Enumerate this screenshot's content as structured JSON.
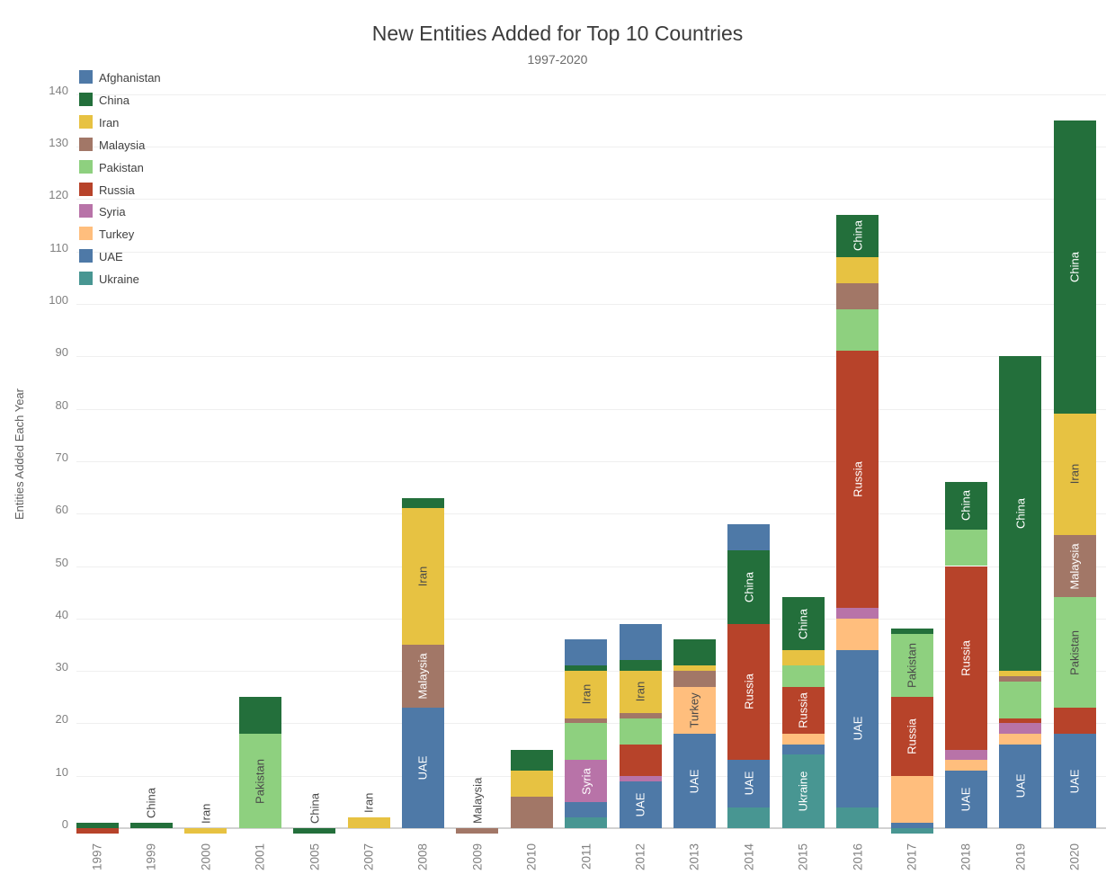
{
  "title": "New Entities Added for Top 10 Countries",
  "subtitle": "1997-2020",
  "y_axis_title": "Entities Added Each Year",
  "chart_data": {
    "type": "bar",
    "stacked": true,
    "grid": "horizontal",
    "legend_position": "upper-left",
    "categories": [
      "1997",
      "1999",
      "2000",
      "2001",
      "2005",
      "2007",
      "2008",
      "2009",
      "2010",
      "2011",
      "2012",
      "2013",
      "2014",
      "2015",
      "2016",
      "2017",
      "2018",
      "2019",
      "2020"
    ],
    "ylim": [
      -3,
      141
    ],
    "yticks": [
      0,
      10,
      20,
      30,
      40,
      50,
      60,
      70,
      80,
      90,
      100,
      110,
      120,
      130,
      140
    ],
    "stack_order_bottom_to_top": [
      "Ukraine",
      "UAE",
      "Turkey",
      "Syria",
      "Russia",
      "Pakistan",
      "Malaysia",
      "Iran",
      "China",
      "Afghanistan"
    ],
    "series": [
      {
        "name": "Afghanistan",
        "color": "#4e79a7",
        "values": [
          0,
          0,
          0,
          0,
          0,
          0,
          0,
          0,
          0,
          5,
          7,
          0,
          5,
          0,
          0,
          0,
          0,
          0,
          0
        ]
      },
      {
        "name": "China",
        "color": "#236f3b",
        "values": [
          1,
          1,
          0,
          7,
          -1,
          0,
          2,
          0,
          4,
          1,
          2,
          5,
          14,
          10,
          8,
          1,
          9,
          60,
          56
        ]
      },
      {
        "name": "Iran",
        "color": "#e7c242",
        "values": [
          0,
          0,
          -1,
          0,
          0,
          2,
          26,
          0,
          5,
          9,
          8,
          1,
          0,
          3,
          5,
          0,
          0,
          1,
          23
        ]
      },
      {
        "name": "Malaysia",
        "color": "#a27767",
        "values": [
          0,
          0,
          0,
          0,
          0,
          0,
          12,
          -1,
          6,
          1,
          1,
          3,
          0,
          0,
          5,
          0,
          0,
          1,
          12
        ]
      },
      {
        "name": "Pakistan",
        "color": "#8ed07f",
        "values": [
          0,
          0,
          0,
          18,
          0,
          0,
          0,
          0,
          0,
          7,
          5,
          0,
          0,
          4,
          8,
          12,
          7,
          7,
          21
        ]
      },
      {
        "name": "Russia",
        "color": "#b7432a",
        "values": [
          -1,
          0,
          0,
          0,
          0,
          0,
          0,
          0,
          0,
          0,
          6,
          0,
          26,
          9,
          49,
          15,
          35,
          1,
          5
        ]
      },
      {
        "name": "Syria",
        "color": "#b873a8",
        "values": [
          0,
          0,
          0,
          0,
          0,
          0,
          0,
          0,
          0,
          8,
          1,
          0,
          0,
          0,
          2,
          0,
          2,
          2,
          0
        ]
      },
      {
        "name": "Turkey",
        "color": "#ffbe7d",
        "values": [
          0,
          0,
          0,
          0,
          0,
          0,
          0,
          0,
          0,
          0,
          0,
          9,
          0,
          2,
          6,
          9,
          2,
          2,
          0
        ]
      },
      {
        "name": "UAE",
        "color": "#4e79a7",
        "values": [
          0,
          0,
          0,
          0,
          0,
          0,
          23,
          0,
          0,
          3,
          9,
          18,
          9,
          2,
          30,
          1,
          11,
          16,
          18
        ]
      },
      {
        "name": "Ukraine",
        "color": "#489692",
        "values": [
          0,
          0,
          0,
          0,
          0,
          0,
          0,
          0,
          0,
          2,
          0,
          0,
          4,
          14,
          4,
          -1,
          0,
          0,
          0
        ]
      }
    ],
    "bar_labels": [
      {
        "year": "1999",
        "country": "China",
        "placement": "above",
        "tone": "axis"
      },
      {
        "year": "2000",
        "country": "Iran",
        "placement": "above",
        "tone": "axis"
      },
      {
        "year": "2001",
        "country": "Pakistan",
        "placement": "inside",
        "tone": "dark"
      },
      {
        "year": "2005",
        "country": "China",
        "placement": "above",
        "tone": "axis"
      },
      {
        "year": "2007",
        "country": "Iran",
        "placement": "above",
        "tone": "axis"
      },
      {
        "year": "2008",
        "country": "UAE",
        "placement": "inside",
        "tone": "light"
      },
      {
        "year": "2008",
        "country": "Malaysia",
        "placement": "inside",
        "tone": "light"
      },
      {
        "year": "2008",
        "country": "Iran",
        "placement": "inside",
        "tone": "dark"
      },
      {
        "year": "2009",
        "country": "Malaysia",
        "placement": "above",
        "tone": "axis"
      },
      {
        "year": "2011",
        "country": "Syria",
        "placement": "inside",
        "tone": "light"
      },
      {
        "year": "2011",
        "country": "Iran",
        "placement": "inside",
        "tone": "dark"
      },
      {
        "year": "2012",
        "country": "UAE",
        "placement": "inside",
        "tone": "light"
      },
      {
        "year": "2012",
        "country": "Iran",
        "placement": "inside",
        "tone": "dark"
      },
      {
        "year": "2013",
        "country": "UAE",
        "placement": "inside",
        "tone": "light"
      },
      {
        "year": "2013",
        "country": "Turkey",
        "placement": "inside",
        "tone": "dark"
      },
      {
        "year": "2014",
        "country": "UAE",
        "placement": "inside",
        "tone": "light"
      },
      {
        "year": "2014",
        "country": "Russia",
        "placement": "inside",
        "tone": "light"
      },
      {
        "year": "2014",
        "country": "China",
        "placement": "inside",
        "tone": "light"
      },
      {
        "year": "2015",
        "country": "Ukraine",
        "placement": "inside",
        "tone": "light"
      },
      {
        "year": "2015",
        "country": "Russia",
        "placement": "inside",
        "tone": "light"
      },
      {
        "year": "2015",
        "country": "China",
        "placement": "inside",
        "tone": "light"
      },
      {
        "year": "2016",
        "country": "UAE",
        "placement": "inside",
        "tone": "light"
      },
      {
        "year": "2016",
        "country": "Russia",
        "placement": "inside",
        "tone": "light"
      },
      {
        "year": "2016",
        "country": "China",
        "placement": "inside",
        "tone": "light"
      },
      {
        "year": "2017",
        "country": "Russia",
        "placement": "inside",
        "tone": "light"
      },
      {
        "year": "2017",
        "country": "Pakistan",
        "placement": "inside",
        "tone": "dark"
      },
      {
        "year": "2018",
        "country": "UAE",
        "placement": "inside",
        "tone": "light"
      },
      {
        "year": "2018",
        "country": "Russia",
        "placement": "inside",
        "tone": "light"
      },
      {
        "year": "2018",
        "country": "China",
        "placement": "inside",
        "tone": "light"
      },
      {
        "year": "2019",
        "country": "UAE",
        "placement": "inside",
        "tone": "light"
      },
      {
        "year": "2019",
        "country": "China",
        "placement": "inside",
        "tone": "light"
      },
      {
        "year": "2020",
        "country": "UAE",
        "placement": "inside",
        "tone": "light"
      },
      {
        "year": "2020",
        "country": "Pakistan",
        "placement": "inside",
        "tone": "dark"
      },
      {
        "year": "2020",
        "country": "Malaysia",
        "placement": "inside",
        "tone": "light"
      },
      {
        "year": "2020",
        "country": "Iran",
        "placement": "inside",
        "tone": "dark"
      },
      {
        "year": "2020",
        "country": "China",
        "placement": "inside",
        "tone": "light"
      }
    ],
    "label_tone_colors": {
      "light": "#ffffff",
      "dark": "#4a4a4a",
      "axis": "#4a4a4a"
    }
  }
}
